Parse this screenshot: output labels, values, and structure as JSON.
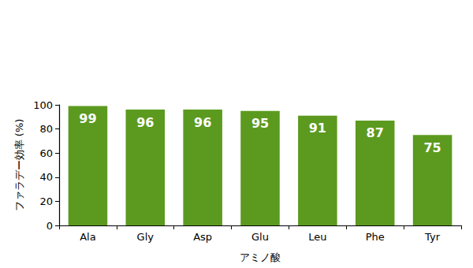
{
  "chart_data": {
    "type": "bar",
    "x_label": "アミノ酸",
    "y_label": "ファラデー効率 (%)",
    "categories": [
      "Ala",
      "Gly",
      "Asp",
      "Glu",
      "Leu",
      "Phe",
      "Tyr"
    ],
    "values": [
      99,
      96,
      96,
      95,
      91,
      87,
      75
    ],
    "color": "#5b9a1e",
    "ylim": [
      0,
      100
    ],
    "yticks": [
      0,
      20,
      40,
      60,
      80,
      100
    ],
    "grid": false,
    "data_labels": true
  }
}
